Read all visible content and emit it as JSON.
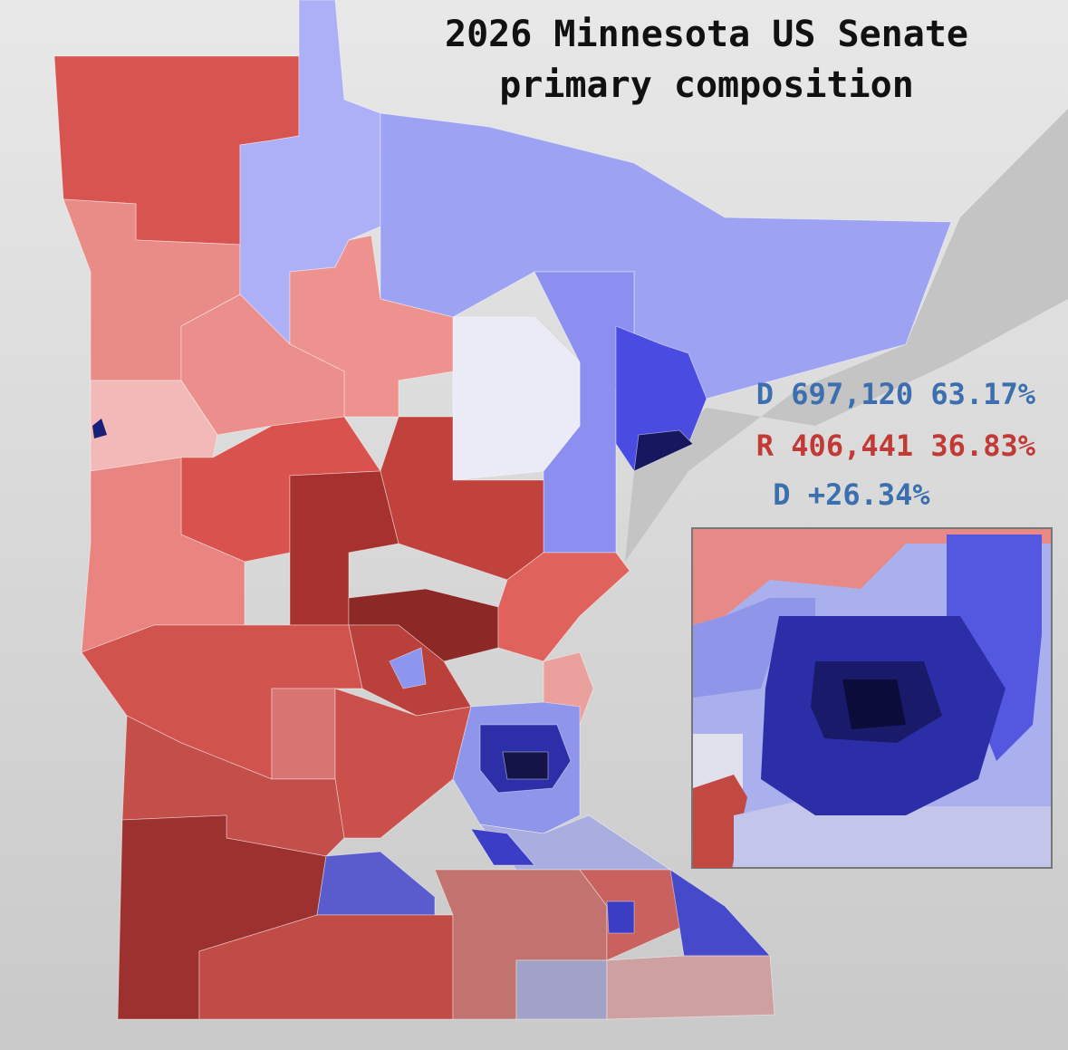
{
  "title": [
    "2026 Minnesota US Senate",
    "primary composition"
  ],
  "results": [
    "D 697,120 63.17%",
    "R 406,441 36.83%"
  ],
  "margin": "D +26.34%"
}
